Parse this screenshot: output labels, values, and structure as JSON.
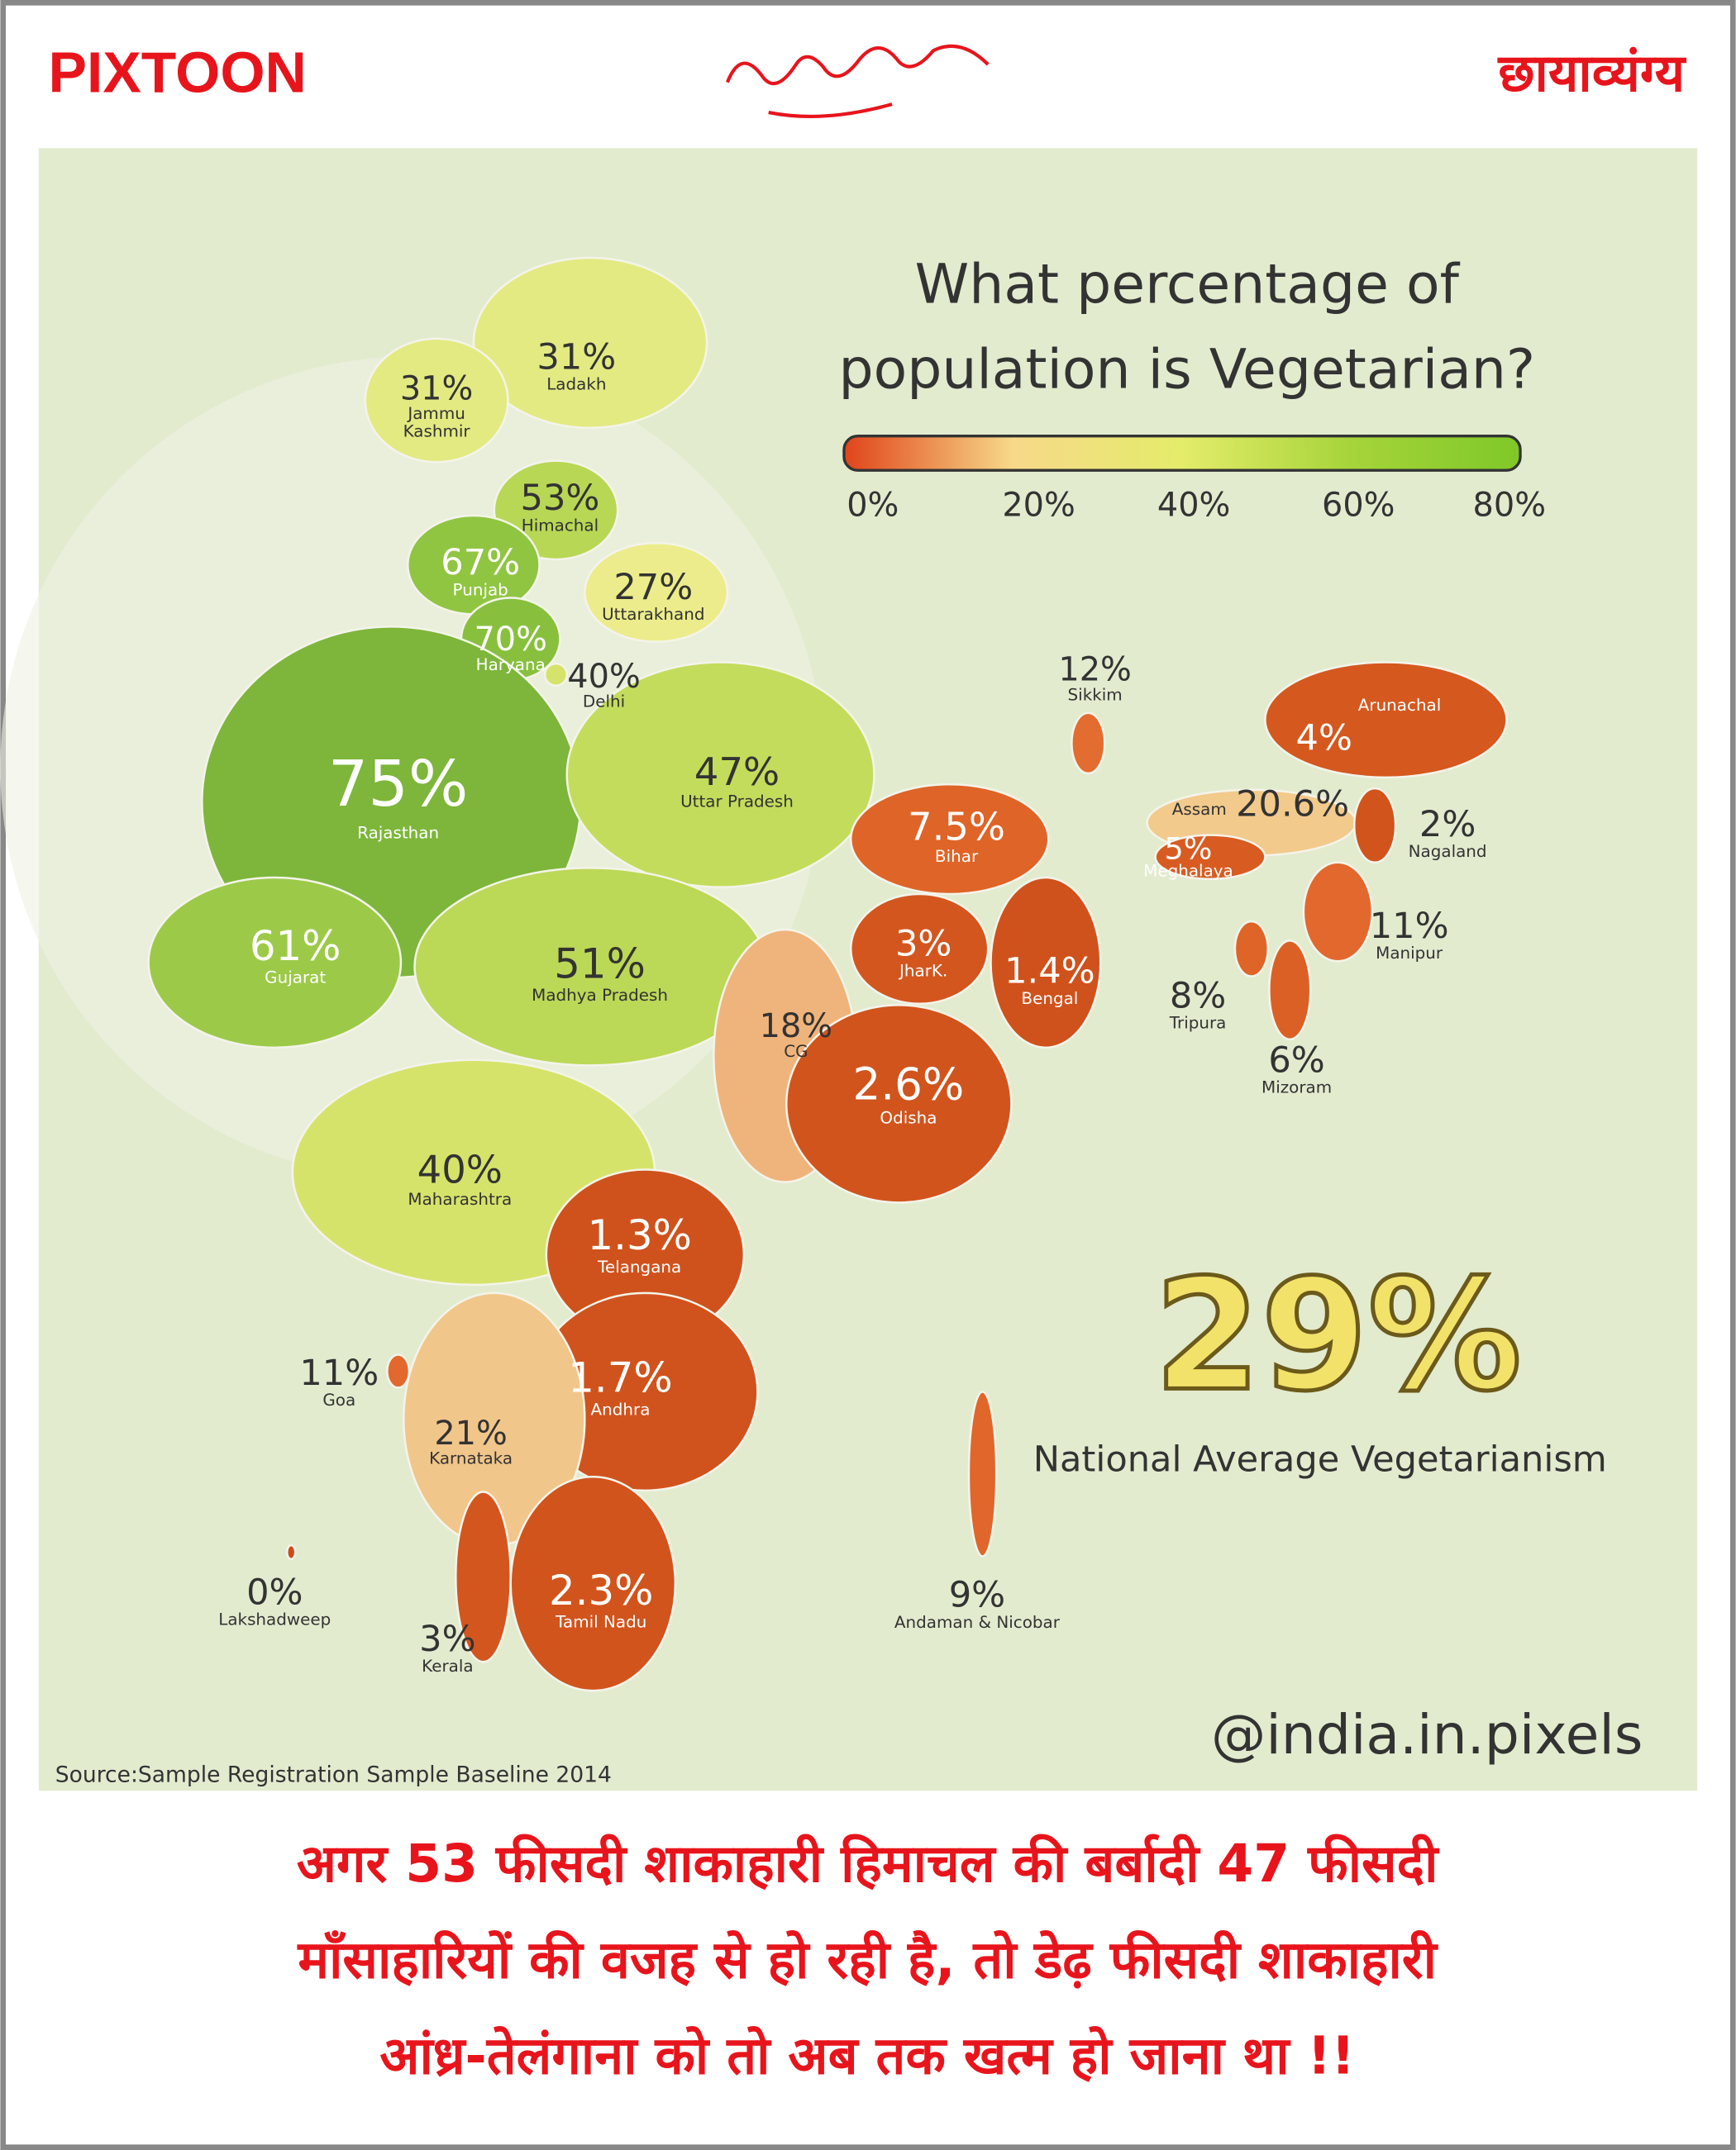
{
  "header": {
    "brand": "PIXTOON",
    "section": "छायाव्यंग्य"
  },
  "infographic": {
    "title_lines": [
      "What percentage of",
      "population is Vegetarian?"
    ],
    "legend": {
      "ticks": [
        "0%",
        "20%",
        "40%",
        "60%",
        "80%"
      ],
      "colors": [
        "#e0441a",
        "#f7d98a",
        "#e4ec6a",
        "#a6d43a",
        "#7fc828"
      ]
    },
    "regions": [
      {
        "name": "Ladakh",
        "value": "31%",
        "color": "#e3ea82"
      },
      {
        "name": [
          "Jammu",
          "Kashmir"
        ],
        "value": "31%",
        "color": "#e3ea82"
      },
      {
        "name": "Himachal",
        "value": "53%",
        "color": "#b8d755"
      },
      {
        "name": "Punjab",
        "value": "67%",
        "color": "#90c542"
      },
      {
        "name": "Haryana",
        "value": "70%",
        "color": "#88c03e"
      },
      {
        "name": "Uttarakhand",
        "value": "27%",
        "color": "#ecec8c"
      },
      {
        "name": "Delhi",
        "value": "40%",
        "color": "#d6e36a"
      },
      {
        "name": "Rajasthan",
        "value": "75%",
        "color": "#7db63a"
      },
      {
        "name": "Uttar Pradesh",
        "value": "47%",
        "color": "#c4dc5c"
      },
      {
        "name": "Gujarat",
        "value": "61%",
        "color": "#9cca48"
      },
      {
        "name": "Madhya Pradesh",
        "value": "51%",
        "color": "#bcd857"
      },
      {
        "name": "CG",
        "value": "18%",
        "color": "#efb47c"
      },
      {
        "name": "JharK.",
        "value": "3%",
        "color": "#d3561f"
      },
      {
        "name": "Bengal",
        "value": "1.4%",
        "color": "#cf521c"
      },
      {
        "name": "Bihar",
        "value": "7.5%",
        "color": "#df6428"
      },
      {
        "name": "Odisha",
        "value": "2.6%",
        "color": "#d1541d"
      },
      {
        "name": "Maharashtra",
        "value": "40%",
        "color": "#d6e36a"
      },
      {
        "name": "Telangana",
        "value": "1.3%",
        "color": "#cf521c"
      },
      {
        "name": "Andhra",
        "value": "1.7%",
        "color": "#d0531d"
      },
      {
        "name": "Goa",
        "value": "11%",
        "color": "#e2682d"
      },
      {
        "name": "Karnataka",
        "value": "21%",
        "color": "#f1c68a"
      },
      {
        "name": "Kerala",
        "value": "3%",
        "color": "#d3561f"
      },
      {
        "name": "Tamil Nadu",
        "value": "2.3%",
        "color": "#d1541d"
      },
      {
        "name": "Lakshadweep",
        "value": "0%",
        "color": "#cc4c18"
      },
      {
        "name": "Andaman & Nicobar",
        "value": "9%",
        "color": "#e0662b"
      },
      {
        "name": "Sikkim",
        "value": "12%",
        "color": "#e36c30"
      },
      {
        "name": "Arunachal",
        "value": "4%",
        "color": "#d5581f"
      },
      {
        "name": "Assam",
        "value": "20.6%",
        "color": "#f2ca8c"
      },
      {
        "name": "Meghalaya",
        "value": "5%",
        "color": "#d85c22"
      },
      {
        "name": "Nagaland",
        "value": "2%",
        "color": "#d1541d"
      },
      {
        "name": "Manipur",
        "value": "11%",
        "color": "#e2682d"
      },
      {
        "name": "Tripura",
        "value": "8%",
        "color": "#df6428"
      },
      {
        "name": "Mizoram",
        "value": "6%",
        "color": "#db6025"
      }
    ],
    "national_average": {
      "value": "29%",
      "label": "National Average Vegetarianism"
    },
    "handle": "@india.in.pixels",
    "source": "Source:Sample Registration Sample Baseline 2014"
  },
  "caption": {
    "lines": [
      "अगर 53 फीसदी शाकाहारी हिमाचल की बर्बादी 47 फीसदी",
      "माँसाहारियों की वजह से हो रही है, तो डेढ़ फीसदी शाकाहारी",
      "आंध्र-तेलंगाना को तो अब तक खत्म हो जाना था !!"
    ]
  }
}
